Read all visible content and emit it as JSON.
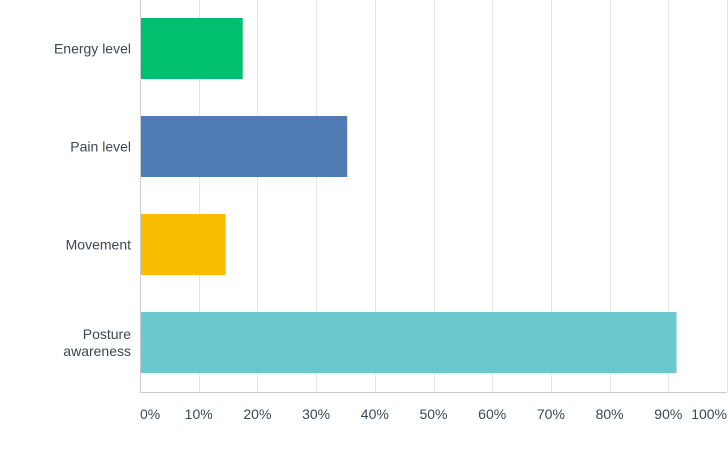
{
  "chart_data": {
    "type": "bar",
    "orientation": "horizontal",
    "title": "",
    "xlabel": "",
    "ylabel": "",
    "categories": [
      [
        "Energy level"
      ],
      [
        "Pain level"
      ],
      [
        "Movement"
      ],
      [
        "Posture",
        "awareness"
      ]
    ],
    "values": [
      17.5,
      35.3,
      14.6,
      91.4
    ],
    "colors": [
      "#00bf6f",
      "#507cb6",
      "#f9be00",
      "#6bc8cd"
    ],
    "xlim": [
      0,
      100
    ],
    "x_ticks": [
      0,
      10,
      20,
      30,
      40,
      50,
      60,
      70,
      80,
      90,
      100
    ],
    "x_tick_labels": [
      "0%",
      "10%",
      "20%",
      "30%",
      "40%",
      "50%",
      "60%",
      "70%",
      "80%",
      "90%",
      "100%"
    ],
    "grid": true,
    "legend": "none"
  }
}
